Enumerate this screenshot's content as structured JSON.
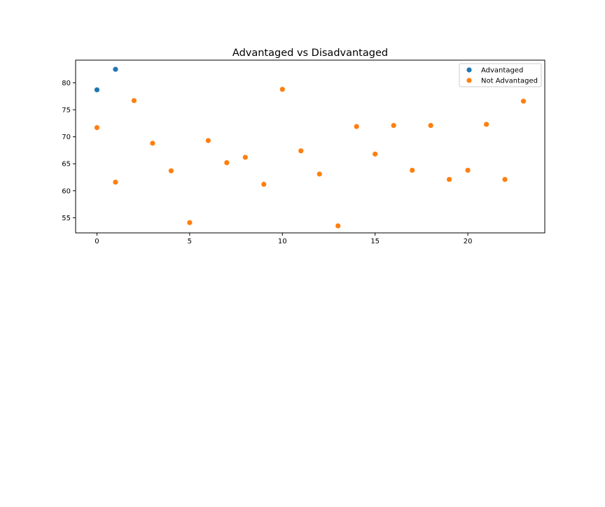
{
  "chart_data": {
    "type": "scatter",
    "title": "Advantaged vs Disadvantaged",
    "xlabel": "",
    "ylabel": "",
    "xlim": [
      -1.15,
      24.15
    ],
    "ylim": [
      52.2,
      84.2
    ],
    "xticks": [
      0,
      5,
      10,
      15,
      20
    ],
    "yticks": [
      55,
      60,
      65,
      70,
      75,
      80
    ],
    "grid": false,
    "legend_position": "top-right",
    "series": [
      {
        "name": "Advantaged",
        "color": "#1f77b4",
        "points": [
          [
            0,
            78.7
          ],
          [
            1,
            82.5
          ]
        ]
      },
      {
        "name": "Not Advantaged",
        "color": "#ff7f0e",
        "points": [
          [
            0,
            71.7
          ],
          [
            1,
            61.6
          ],
          [
            2,
            76.7
          ],
          [
            3,
            68.8
          ],
          [
            4,
            63.7
          ],
          [
            5,
            54.1
          ],
          [
            6,
            69.3
          ],
          [
            7,
            65.2
          ],
          [
            8,
            66.2
          ],
          [
            9,
            61.2
          ],
          [
            10,
            78.8
          ],
          [
            11,
            67.4
          ],
          [
            12,
            63.1
          ],
          [
            13,
            53.5
          ],
          [
            14,
            71.9
          ],
          [
            15,
            66.8
          ],
          [
            16,
            72.1
          ],
          [
            17,
            63.8
          ],
          [
            18,
            72.1
          ],
          [
            19,
            62.1
          ],
          [
            20,
            63.8
          ],
          [
            21,
            72.3
          ],
          [
            22,
            62.1
          ],
          [
            23,
            76.6
          ]
        ]
      }
    ]
  }
}
